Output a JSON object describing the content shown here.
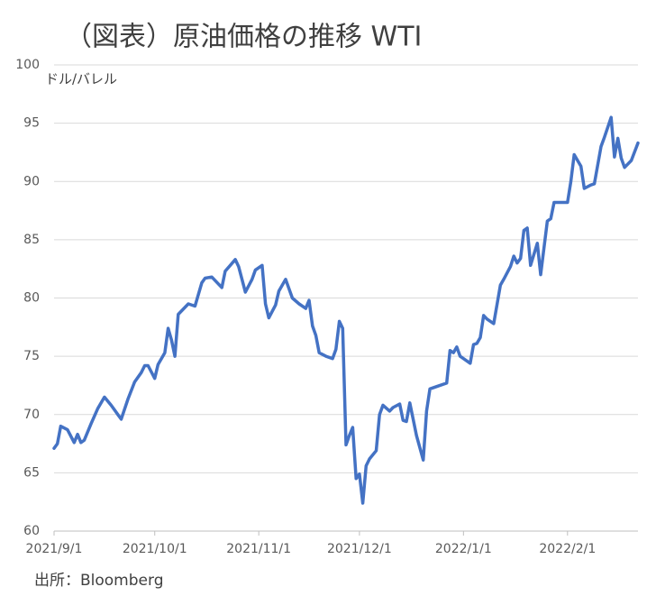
{
  "chart_data": {
    "type": "line",
    "title": "（図表）原油価格の推移 WTI",
    "y_label": "ドル/バレル",
    "source": "出所：Bloomberg",
    "x": [
      "2021/9/1",
      "2021/9/2",
      "2021/9/3",
      "2021/9/5",
      "2021/9/7",
      "2021/9/8",
      "2021/9/9",
      "2021/9/10",
      "2021/9/12",
      "2021/9/14",
      "2021/9/16",
      "2021/9/18",
      "2021/9/20",
      "2021/9/21",
      "2021/9/23",
      "2021/9/25",
      "2021/9/27",
      "2021/9/28",
      "2021/9/29",
      "2021/10/1",
      "2021/10/2",
      "2021/10/4",
      "2021/10/5",
      "2021/10/6",
      "2021/10/7",
      "2021/10/8",
      "2021/10/11",
      "2021/10/13",
      "2021/10/15",
      "2021/10/16",
      "2021/10/18",
      "2021/10/21",
      "2021/10/22",
      "2021/10/25",
      "2021/10/26",
      "2021/10/28",
      "2021/10/30",
      "2021/10/31",
      "2021/11/2",
      "2021/11/3",
      "2021/11/4",
      "2021/11/6",
      "2021/11/7",
      "2021/11/9",
      "2021/11/11",
      "2021/11/13",
      "2021/11/15",
      "2021/11/16",
      "2021/11/17",
      "2021/11/18",
      "2021/11/19",
      "2021/11/21",
      "2021/11/23",
      "2021/11/24",
      "2021/11/25",
      "2021/11/26",
      "2021/11/27",
      "2021/11/28",
      "2021/11/29",
      "2021/11/30",
      "2021/12/1",
      "2021/12/2",
      "2021/12/3",
      "2021/12/4",
      "2021/12/6",
      "2021/12/7",
      "2021/12/8",
      "2021/12/10",
      "2021/12/11",
      "2021/12/13",
      "2021/12/14",
      "2021/12/15",
      "2021/12/16",
      "2021/12/17",
      "2021/12/18",
      "2021/12/20",
      "2021/12/21",
      "2021/12/22",
      "2021/12/24",
      "2021/12/27",
      "2021/12/28",
      "2021/12/29",
      "2021/12/30",
      "2021/12/31",
      "2022/1/3",
      "2022/1/4",
      "2022/1/5",
      "2022/1/6",
      "2022/1/7",
      "2022/1/8",
      "2022/1/10",
      "2022/1/12",
      "2022/1/13",
      "2022/1/15",
      "2022/1/16",
      "2022/1/17",
      "2022/1/18",
      "2022/1/19",
      "2022/1/20",
      "2022/1/21",
      "2022/1/23",
      "2022/1/24",
      "2022/1/25",
      "2022/1/26",
      "2022/1/27",
      "2022/1/28",
      "2022/2/1",
      "2022/2/2",
      "2022/2/3",
      "2022/2/5",
      "2022/2/6",
      "2022/2/8",
      "2022/2/9",
      "2022/2/11",
      "2022/2/12",
      "2022/2/14",
      "2022/2/15",
      "2022/2/16",
      "2022/2/17",
      "2022/2/18",
      "2022/2/20",
      "2022/2/22"
    ],
    "series": [
      {
        "name": "WTI",
        "color": "#4472c4",
        "values": [
          67.1,
          67.5,
          69.0,
          68.7,
          67.6,
          68.3,
          67.6,
          67.8,
          69.2,
          70.5,
          71.5,
          70.8,
          70.0,
          69.6,
          71.3,
          72.8,
          73.6,
          74.2,
          74.2,
          73.1,
          74.3,
          75.3,
          77.4,
          76.4,
          75.0,
          78.6,
          79.5,
          79.3,
          81.3,
          81.7,
          81.8,
          80.9,
          82.3,
          83.3,
          82.7,
          80.5,
          81.6,
          82.4,
          82.8,
          79.5,
          78.3,
          79.4,
          80.6,
          81.6,
          80.0,
          79.5,
          79.1,
          79.8,
          77.6,
          76.8,
          75.3,
          75.0,
          74.8,
          75.6,
          78.0,
          77.4,
          67.4,
          68.2,
          68.9,
          64.5,
          64.9,
          62.4,
          65.6,
          66.2,
          66.9,
          70.0,
          70.8,
          70.3,
          70.6,
          70.9,
          69.5,
          69.4,
          71.0,
          69.6,
          68.2,
          66.1,
          70.3,
          72.2,
          72.4,
          72.7,
          75.5,
          75.3,
          75.8,
          75.0,
          74.4,
          76.0,
          76.1,
          76.6,
          78.5,
          78.2,
          77.8,
          81.1,
          81.6,
          82.7,
          83.6,
          83.0,
          83.4,
          85.8,
          86.0,
          82.8,
          84.7,
          82.0,
          84.3,
          86.6,
          86.8,
          88.2,
          88.2,
          90.0,
          92.3,
          91.3,
          89.4,
          89.7,
          89.8,
          93.0,
          93.8,
          95.5,
          92.1,
          93.7,
          92.0,
          91.2,
          91.8,
          93.3
        ]
      }
    ],
    "xlim": [
      "2021/9/1",
      "2022/2/22"
    ],
    "xticks": [
      "2021/9/1",
      "2021/10/1",
      "2021/11/1",
      "2021/12/1",
      "2022/1/1",
      "2022/2/1"
    ],
    "ylim": [
      60,
      100
    ],
    "yticks": [
      60,
      65,
      70,
      75,
      80,
      85,
      90,
      95,
      100
    ],
    "grid": true
  }
}
